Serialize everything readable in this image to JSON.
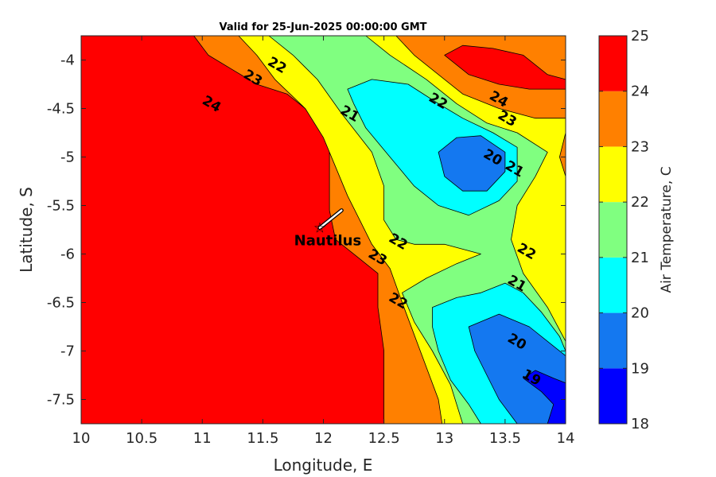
{
  "chart_data": {
    "type": "heatmap",
    "title": "Valid for 25-Jun-2025 00:00:00 GMT",
    "xlabel": "Longitude, E",
    "ylabel": "Latitude, S",
    "xlim": [
      10,
      14
    ],
    "ylim": [
      -7.75,
      -3.75
    ],
    "x_ticks": [
      10,
      10.5,
      11,
      11.5,
      12,
      12.5,
      13,
      13.5,
      14
    ],
    "x_tick_labels": [
      "10",
      "10.5",
      "11",
      "11.5",
      "12",
      "12.5",
      "13",
      "13.5",
      "14"
    ],
    "y_ticks": [
      -4,
      -4.5,
      -5,
      -5.5,
      -6,
      -6.5,
      -7,
      -7.5
    ],
    "y_tick_labels": [
      "-4",
      "-4.5",
      "-5",
      "-5.5",
      "-6",
      "-6.5",
      "-7",
      "-7.5"
    ],
    "colorbar": {
      "label": "Air Temperature, C",
      "levels": [
        18,
        19,
        20,
        21,
        22,
        23,
        24,
        25
      ],
      "tick_labels": [
        "18",
        "19",
        "20",
        "21",
        "22",
        "23",
        "24",
        "25"
      ],
      "colors": [
        "#0000ff",
        "#1478f0",
        "#00ffff",
        "#80ff80",
        "#ffff00",
        "#ff8000",
        "#ff0000",
        "#800000"
      ]
    },
    "regions": [
      {
        "level": 23,
        "points": [
          [
            10.93,
            -3.75
          ],
          [
            11.05,
            -3.95
          ],
          [
            11.25,
            -4.1
          ],
          [
            11.45,
            -4.25
          ],
          [
            11.7,
            -4.35
          ],
          [
            11.95,
            -4.6
          ],
          [
            12.05,
            -4.9
          ],
          [
            12.05,
            -5.2
          ],
          [
            12.05,
            -5.55
          ],
          [
            12.1,
            -5.85
          ],
          [
            12.3,
            -6.05
          ],
          [
            12.45,
            -6.2
          ],
          [
            12.45,
            -6.55
          ],
          [
            12.5,
            -7.0
          ],
          [
            12.5,
            -7.75
          ],
          [
            14,
            -7.75
          ],
          [
            14,
            -3.75
          ]
        ]
      },
      {
        "level": 22,
        "points": [
          [
            11.3,
            -3.75
          ],
          [
            11.45,
            -3.95
          ],
          [
            11.6,
            -4.2
          ],
          [
            11.85,
            -4.5
          ],
          [
            12.0,
            -4.8
          ],
          [
            12.1,
            -5.1
          ],
          [
            12.2,
            -5.4
          ],
          [
            12.3,
            -5.65
          ],
          [
            12.4,
            -5.9
          ],
          [
            12.55,
            -6.15
          ],
          [
            12.65,
            -6.5
          ],
          [
            12.8,
            -7.0
          ],
          [
            12.95,
            -7.5
          ],
          [
            12.98,
            -7.75
          ],
          [
            14,
            -7.75
          ],
          [
            14,
            -5.2
          ],
          [
            13.95,
            -5.0
          ],
          [
            14,
            -4.75
          ],
          [
            14,
            -4.6
          ],
          [
            13.75,
            -4.6
          ],
          [
            13.45,
            -4.5
          ],
          [
            13.15,
            -4.35
          ],
          [
            12.95,
            -4.15
          ],
          [
            12.75,
            -3.95
          ],
          [
            12.6,
            -3.75
          ]
        ]
      },
      {
        "level": 21,
        "points": [
          [
            11.55,
            -3.75
          ],
          [
            11.75,
            -3.95
          ],
          [
            11.95,
            -4.2
          ],
          [
            12.15,
            -4.55
          ],
          [
            12.4,
            -4.95
          ],
          [
            12.5,
            -5.3
          ],
          [
            12.5,
            -5.65
          ],
          [
            12.6,
            -5.85
          ],
          [
            12.75,
            -5.9
          ],
          [
            13.0,
            -5.9
          ],
          [
            13.3,
            -6.0
          ],
          [
            13.1,
            -6.1
          ],
          [
            12.85,
            -6.25
          ],
          [
            12.65,
            -6.4
          ],
          [
            12.75,
            -6.7
          ],
          [
            12.9,
            -7.0
          ],
          [
            13.05,
            -7.35
          ],
          [
            13.15,
            -7.75
          ],
          [
            14,
            -7.75
          ],
          [
            14,
            -6.9
          ],
          [
            13.85,
            -6.55
          ],
          [
            13.65,
            -6.2
          ],
          [
            13.55,
            -5.85
          ],
          [
            13.6,
            -5.5
          ],
          [
            13.75,
            -5.2
          ],
          [
            13.85,
            -4.95
          ],
          [
            13.6,
            -4.75
          ],
          [
            13.35,
            -4.65
          ],
          [
            13.1,
            -4.45
          ],
          [
            12.85,
            -4.2
          ],
          [
            12.55,
            -3.95
          ],
          [
            12.35,
            -3.75
          ]
        ]
      },
      {
        "level": 20,
        "points": [
          [
            12.2,
            -4.3
          ],
          [
            12.4,
            -4.2
          ],
          [
            12.7,
            -4.25
          ],
          [
            12.95,
            -4.45
          ],
          [
            13.15,
            -4.6
          ],
          [
            13.4,
            -4.75
          ],
          [
            13.6,
            -4.9
          ],
          [
            13.6,
            -5.25
          ],
          [
            13.45,
            -5.45
          ],
          [
            13.2,
            -5.6
          ],
          [
            12.95,
            -5.5
          ],
          [
            12.75,
            -5.3
          ],
          [
            12.55,
            -5.0
          ],
          [
            12.35,
            -4.7
          ],
          [
            12.25,
            -4.45
          ]
        ]
      },
      {
        "level": 19,
        "points": [
          [
            12.95,
            -4.95
          ],
          [
            13.1,
            -4.8
          ],
          [
            13.3,
            -4.78
          ],
          [
            13.5,
            -4.95
          ],
          [
            13.5,
            -5.15
          ],
          [
            13.35,
            -5.35
          ],
          [
            13.15,
            -5.35
          ],
          [
            13.0,
            -5.2
          ]
        ]
      },
      {
        "level": 20,
        "points": [
          [
            12.9,
            -6.55
          ],
          [
            13.1,
            -6.45
          ],
          [
            13.3,
            -6.4
          ],
          [
            13.5,
            -6.3
          ],
          [
            13.65,
            -6.4
          ],
          [
            13.8,
            -6.6
          ],
          [
            13.95,
            -6.85
          ],
          [
            14,
            -7.0
          ],
          [
            14,
            -7.75
          ],
          [
            13.3,
            -7.75
          ],
          [
            13.2,
            -7.55
          ],
          [
            13.05,
            -7.3
          ],
          [
            12.95,
            -7.0
          ],
          [
            12.9,
            -6.75
          ]
        ]
      },
      {
        "level": 19,
        "points": [
          [
            13.2,
            -6.75
          ],
          [
            13.45,
            -6.62
          ],
          [
            13.7,
            -6.75
          ],
          [
            13.9,
            -6.95
          ],
          [
            14,
            -7.05
          ],
          [
            14,
            -7.75
          ],
          [
            13.6,
            -7.75
          ],
          [
            13.45,
            -7.5
          ],
          [
            13.35,
            -7.25
          ],
          [
            13.25,
            -7.0
          ]
        ]
      },
      {
        "level": 18,
        "points": [
          [
            13.65,
            -7.28
          ],
          [
            13.75,
            -7.2
          ],
          [
            13.9,
            -7.28
          ],
          [
            14,
            -7.33
          ],
          [
            14,
            -7.75
          ],
          [
            13.85,
            -7.75
          ],
          [
            13.9,
            -7.55
          ],
          [
            13.8,
            -7.42
          ]
        ]
      },
      {
        "level": 24,
        "points": [
          [
            13.0,
            -3.95
          ],
          [
            13.15,
            -3.85
          ],
          [
            13.4,
            -3.88
          ],
          [
            13.65,
            -3.95
          ],
          [
            13.85,
            -4.15
          ],
          [
            14,
            -4.2
          ],
          [
            14,
            -4.3
          ],
          [
            13.7,
            -4.3
          ],
          [
            13.45,
            -4.25
          ],
          [
            13.2,
            -4.15
          ]
        ]
      }
    ],
    "contour_labels": [
      {
        "text": "24",
        "x": 11.08,
        "y": -4.45
      },
      {
        "text": "23",
        "x": 11.42,
        "y": -4.18
      },
      {
        "text": "22",
        "x": 11.62,
        "y": -4.05
      },
      {
        "text": "21",
        "x": 12.22,
        "y": -4.55
      },
      {
        "text": "22",
        "x": 12.95,
        "y": -4.42
      },
      {
        "text": "24",
        "x": 13.45,
        "y": -4.4
      },
      {
        "text": "23",
        "x": 13.52,
        "y": -4.6
      },
      {
        "text": "20",
        "x": 13.4,
        "y": -5.0
      },
      {
        "text": "21",
        "x": 13.58,
        "y": -5.12
      },
      {
        "text": "22",
        "x": 12.62,
        "y": -5.87
      },
      {
        "text": "23",
        "x": 12.45,
        "y": -6.03
      },
      {
        "text": "22",
        "x": 12.62,
        "y": -6.48
      },
      {
        "text": "22",
        "x": 13.68,
        "y": -5.97
      },
      {
        "text": "21",
        "x": 13.6,
        "y": -6.3
      },
      {
        "text": "20",
        "x": 13.6,
        "y": -6.9
      },
      {
        "text": "19",
        "x": 13.72,
        "y": -7.27
      }
    ],
    "marker": {
      "label": "Nautilus",
      "x": 11.97,
      "y": -5.73,
      "vector_x": 12.15,
      "vector_y": -5.55
    }
  }
}
